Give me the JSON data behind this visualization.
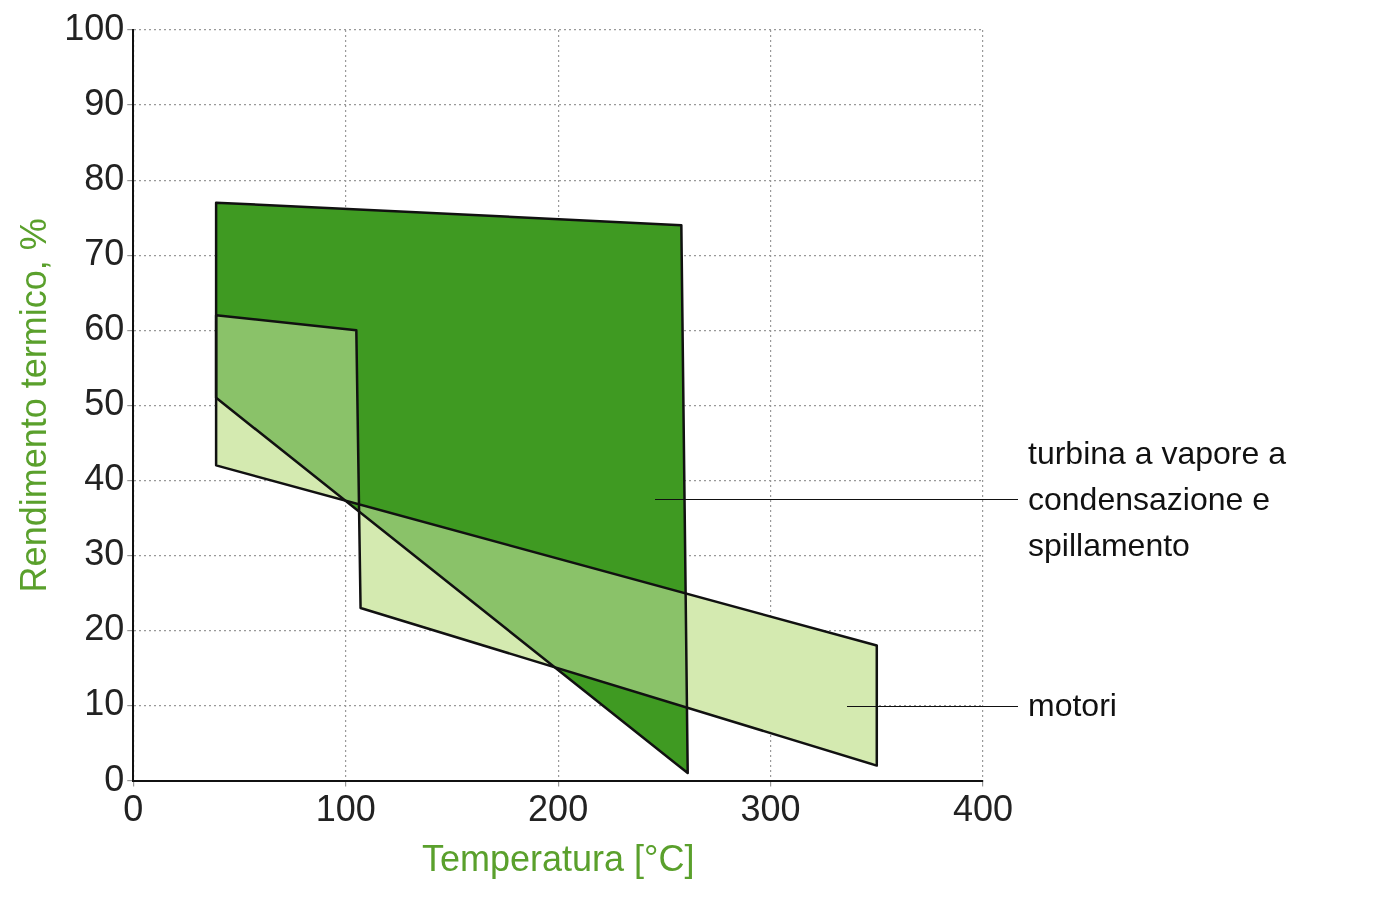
{
  "chart_data": {
    "type": "area",
    "xlabel": "Temperatura [°C]",
    "ylabel": "Rendimento termico, %",
    "xlim": [
      0,
      400
    ],
    "xticks": [
      0,
      100,
      200,
      300,
      400
    ],
    "ylim": [
      0,
      100
    ],
    "yticks": [
      0,
      10,
      20,
      30,
      40,
      50,
      60,
      70,
      80,
      90,
      100
    ],
    "grid": true,
    "series": [
      {
        "name": "turbina a vapore a condensazione e spillamento",
        "color": "#3f9a22",
        "x": [
          39,
          258,
          261,
          39
        ],
        "values": [
          77,
          74,
          1,
          51
        ]
      },
      {
        "name": "motori",
        "color": "#d4eab0",
        "x": [
          39,
          105,
          107,
          350,
          350,
          39
        ],
        "values": [
          62,
          60,
          23,
          2,
          18,
          42
        ]
      }
    ]
  }
}
